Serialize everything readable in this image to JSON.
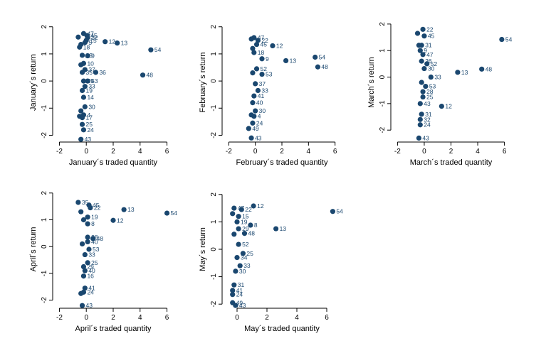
{
  "colors": {
    "marker": "#1a476f",
    "label": "#1a476f",
    "axis": "#000000"
  },
  "chart_data": [
    {
      "type": "scatter",
      "title": "",
      "xlabel": "January´s traded quantity",
      "ylabel": "January´s return",
      "xlim": [
        -2.5,
        6.5
      ],
      "ylim": [
        -2.25,
        2.15
      ],
      "xticks": [
        -2,
        0,
        2,
        4,
        6
      ],
      "yticks": [
        -2,
        -1,
        0,
        1,
        2
      ],
      "points": [
        {
          "x": -0.2,
          "y": 1.75,
          "label": "47"
        },
        {
          "x": 0.05,
          "y": 1.68,
          "label": "45"
        },
        {
          "x": 0.1,
          "y": 1.6,
          "label": "22"
        },
        {
          "x": -0.6,
          "y": 1.62,
          "label": ""
        },
        {
          "x": 0.0,
          "y": 1.5,
          "label": "15"
        },
        {
          "x": -0.1,
          "y": 1.42,
          "label": "5"
        },
        {
          "x": 1.4,
          "y": 1.45,
          "label": "12"
        },
        {
          "x": 2.3,
          "y": 1.4,
          "label": "13"
        },
        {
          "x": -0.4,
          "y": 1.35,
          "label": ""
        },
        {
          "x": -0.5,
          "y": 1.25,
          "label": "18"
        },
        {
          "x": 4.8,
          "y": 1.15,
          "label": "54"
        },
        {
          "x": -0.3,
          "y": 0.95,
          "label": "29"
        },
        {
          "x": 0.1,
          "y": 0.93,
          "label": "9"
        },
        {
          "x": -0.2,
          "y": 0.65,
          "label": "10"
        },
        {
          "x": -0.4,
          "y": 0.6,
          "label": ""
        },
        {
          "x": -0.1,
          "y": 0.42,
          "label": "37"
        },
        {
          "x": -0.3,
          "y": 0.32,
          "label": "35"
        },
        {
          "x": 0.7,
          "y": 0.32,
          "label": "36"
        },
        {
          "x": 4.2,
          "y": 0.22,
          "label": "48"
        },
        {
          "x": -0.2,
          "y": 0.0,
          "label": "39"
        },
        {
          "x": 0.1,
          "y": 0.0,
          "label": "53"
        },
        {
          "x": -0.1,
          "y": -0.2,
          "label": "33"
        },
        {
          "x": -0.3,
          "y": -0.35,
          "label": "19"
        },
        {
          "x": -0.2,
          "y": -0.6,
          "label": "14"
        },
        {
          "x": -0.1,
          "y": -0.95,
          "label": "30"
        },
        {
          "x": -0.4,
          "y": -1.1,
          "label": ""
        },
        {
          "x": -0.2,
          "y": -1.25,
          "label": "4"
        },
        {
          "x": -0.3,
          "y": -1.35,
          "label": "17"
        },
        {
          "x": -0.5,
          "y": -1.3,
          "label": ""
        },
        {
          "x": -0.3,
          "y": -1.6,
          "label": "25"
        },
        {
          "x": -0.2,
          "y": -1.8,
          "label": "24"
        },
        {
          "x": -0.4,
          "y": -2.15,
          "label": "43"
        }
      ]
    },
    {
      "type": "scatter",
      "title": "",
      "xlabel": "February´s traded quantity",
      "ylabel": "February´s return",
      "xlim": [
        -2.5,
        6.5
      ],
      "ylim": [
        -2.25,
        2.15
      ],
      "xticks": [
        -2,
        0,
        2,
        4,
        6
      ],
      "yticks": [
        -2,
        -1,
        0,
        1,
        2
      ],
      "points": [
        {
          "x": -0.1,
          "y": 1.6,
          "label": "47"
        },
        {
          "x": 0.2,
          "y": 1.5,
          "label": "22"
        },
        {
          "x": -0.3,
          "y": 1.55,
          "label": ""
        },
        {
          "x": 0.1,
          "y": 1.35,
          "label": "45"
        },
        {
          "x": 1.3,
          "y": 1.3,
          "label": "12"
        },
        {
          "x": -0.2,
          "y": 1.2,
          "label": ""
        },
        {
          "x": -0.1,
          "y": 1.05,
          "label": "18"
        },
        {
          "x": 4.5,
          "y": 0.88,
          "label": "54"
        },
        {
          "x": 0.5,
          "y": 0.82,
          "label": "9"
        },
        {
          "x": 2.3,
          "y": 0.75,
          "label": "13"
        },
        {
          "x": 4.7,
          "y": 0.52,
          "label": "48"
        },
        {
          "x": 0.1,
          "y": 0.45,
          "label": "52"
        },
        {
          "x": 0.5,
          "y": 0.25,
          "label": "53"
        },
        {
          "x": -0.2,
          "y": 0.3,
          "label": ""
        },
        {
          "x": 0.0,
          "y": -0.1,
          "label": "37"
        },
        {
          "x": 0.2,
          "y": -0.35,
          "label": "33"
        },
        {
          "x": -0.1,
          "y": -0.55,
          "label": "41"
        },
        {
          "x": -0.2,
          "y": -0.8,
          "label": "40"
        },
        {
          "x": 0.0,
          "y": -1.1,
          "label": "30"
        },
        {
          "x": -0.3,
          "y": -1.25,
          "label": ""
        },
        {
          "x": -0.1,
          "y": -1.3,
          "label": "4"
        },
        {
          "x": -0.2,
          "y": -1.55,
          "label": "24"
        },
        {
          "x": -0.5,
          "y": -1.75,
          "label": "49"
        },
        {
          "x": -0.3,
          "y": -2.1,
          "label": "43"
        }
      ]
    },
    {
      "type": "scatter",
      "title": "",
      "xlabel": "March´s traded quantity",
      "ylabel": "March´s return",
      "xlim": [
        -2.5,
        6.5
      ],
      "ylim": [
        -2.45,
        2.05
      ],
      "xticks": [
        -2,
        0,
        2,
        4,
        6
      ],
      "yticks": [
        -2,
        -1,
        0,
        1,
        2
      ],
      "points": [
        {
          "x": -0.1,
          "y": 1.8,
          "label": "22"
        },
        {
          "x": -0.5,
          "y": 1.65,
          "label": ""
        },
        {
          "x": 0.0,
          "y": 1.55,
          "label": "45"
        },
        {
          "x": 5.8,
          "y": 1.42,
          "label": "54"
        },
        {
          "x": -0.2,
          "y": 1.2,
          "label": "31"
        },
        {
          "x": -0.4,
          "y": 1.2,
          "label": ""
        },
        {
          "x": -0.3,
          "y": 1.0,
          "label": "9"
        },
        {
          "x": -0.1,
          "y": 0.85,
          "label": "47"
        },
        {
          "x": -0.2,
          "y": 0.6,
          "label": "26"
        },
        {
          "x": 0.2,
          "y": 0.5,
          "label": "52"
        },
        {
          "x": 4.3,
          "y": 0.3,
          "label": "48"
        },
        {
          "x": 0.0,
          "y": 0.32,
          "label": "30"
        },
        {
          "x": 2.5,
          "y": 0.18,
          "label": "13"
        },
        {
          "x": 0.5,
          "y": 0.0,
          "label": "33"
        },
        {
          "x": -0.2,
          "y": -0.2,
          "label": ""
        },
        {
          "x": 0.1,
          "y": -0.35,
          "label": "53"
        },
        {
          "x": -0.1,
          "y": -0.55,
          "label": "28"
        },
        {
          "x": -0.1,
          "y": -0.75,
          "label": "25"
        },
        {
          "x": -0.3,
          "y": -1.0,
          "label": "43"
        },
        {
          "x": 1.3,
          "y": -1.1,
          "label": "12"
        },
        {
          "x": -0.2,
          "y": -1.4,
          "label": "31"
        },
        {
          "x": -0.3,
          "y": -1.6,
          "label": "32"
        },
        {
          "x": -0.3,
          "y": -1.8,
          "label": "24"
        },
        {
          "x": -0.4,
          "y": -2.3,
          "label": "43"
        }
      ]
    },
    {
      "type": "scatter",
      "title": "",
      "xlabel": "April´s traded quantity",
      "ylabel": "April´s return",
      "xlim": [
        -2.5,
        6.5
      ],
      "ylim": [
        -2.3,
        2.1
      ],
      "xticks": [
        -2,
        0,
        2,
        4,
        6
      ],
      "yticks": [
        -2,
        -1,
        0,
        1,
        2
      ],
      "points": [
        {
          "x": -0.6,
          "y": 1.65,
          "label": "35"
        },
        {
          "x": 0.2,
          "y": 1.55,
          "label": "45"
        },
        {
          "x": 0.3,
          "y": 1.45,
          "label": "22"
        },
        {
          "x": 2.8,
          "y": 1.38,
          "label": "13"
        },
        {
          "x": 6.0,
          "y": 1.25,
          "label": "54"
        },
        {
          "x": -0.4,
          "y": 1.3,
          "label": ""
        },
        {
          "x": 0.1,
          "y": 1.1,
          "label": "19"
        },
        {
          "x": 2.0,
          "y": 0.98,
          "label": "12"
        },
        {
          "x": -0.2,
          "y": 1.0,
          "label": ""
        },
        {
          "x": 0.1,
          "y": 0.85,
          "label": "8"
        },
        {
          "x": 0.1,
          "y": 0.35,
          "label": "38"
        },
        {
          "x": 0.5,
          "y": 0.3,
          "label": "48"
        },
        {
          "x": 0.1,
          "y": 0.18,
          "label": "40"
        },
        {
          "x": -0.3,
          "y": 0.1,
          "label": ""
        },
        {
          "x": 0.2,
          "y": -0.1,
          "label": "53"
        },
        {
          "x": -0.1,
          "y": -0.3,
          "label": "33"
        },
        {
          "x": 0.1,
          "y": -0.6,
          "label": "25"
        },
        {
          "x": -0.2,
          "y": -0.75,
          "label": "29"
        },
        {
          "x": -0.1,
          "y": -0.9,
          "label": "40"
        },
        {
          "x": -0.2,
          "y": -1.1,
          "label": "16"
        },
        {
          "x": -0.1,
          "y": -1.55,
          "label": "41"
        },
        {
          "x": -0.2,
          "y": -1.7,
          "label": "24"
        },
        {
          "x": -0.4,
          "y": -1.75,
          "label": ""
        },
        {
          "x": -0.3,
          "y": -2.2,
          "label": "43"
        }
      ]
    },
    {
      "type": "scatter",
      "title": "",
      "xlabel": "May´s traded quantity",
      "ylabel": "May´s return",
      "xlim": [
        -1.0,
        7.0
      ],
      "ylim": [
        -2.15,
        2.15
      ],
      "xticks": [
        0,
        2,
        4,
        6
      ],
      "yticks": [
        -2,
        -1,
        0,
        1,
        2
      ],
      "points": [
        {
          "x": -0.2,
          "y": 1.5,
          "label": "47"
        },
        {
          "x": 0.3,
          "y": 1.45,
          "label": "22"
        },
        {
          "x": 1.1,
          "y": 1.58,
          "label": "12"
        },
        {
          "x": 6.4,
          "y": 1.38,
          "label": "54"
        },
        {
          "x": 0.1,
          "y": 1.2,
          "label": "15"
        },
        {
          "x": -0.3,
          "y": 1.3,
          "label": ""
        },
        {
          "x": 0.0,
          "y": 1.0,
          "label": "19"
        },
        {
          "x": 0.9,
          "y": 0.88,
          "label": "8"
        },
        {
          "x": 2.6,
          "y": 0.75,
          "label": "13"
        },
        {
          "x": 0.1,
          "y": 0.75,
          "label": "29"
        },
        {
          "x": 0.5,
          "y": 0.58,
          "label": "48"
        },
        {
          "x": -0.2,
          "y": 0.55,
          "label": ""
        },
        {
          "x": 0.1,
          "y": 0.18,
          "label": "52"
        },
        {
          "x": 0.4,
          "y": -0.15,
          "label": "25"
        },
        {
          "x": 0.0,
          "y": -0.3,
          "label": "34"
        },
        {
          "x": 0.2,
          "y": -0.6,
          "label": "33"
        },
        {
          "x": -0.1,
          "y": -0.8,
          "label": "30"
        },
        {
          "x": -0.2,
          "y": -1.3,
          "label": "31"
        },
        {
          "x": -0.3,
          "y": -1.5,
          "label": "41"
        },
        {
          "x": -0.3,
          "y": -1.65,
          "label": "24"
        },
        {
          "x": -0.3,
          "y": -1.95,
          "label": "49"
        },
        {
          "x": -0.1,
          "y": -2.05,
          "label": "43"
        }
      ]
    }
  ]
}
